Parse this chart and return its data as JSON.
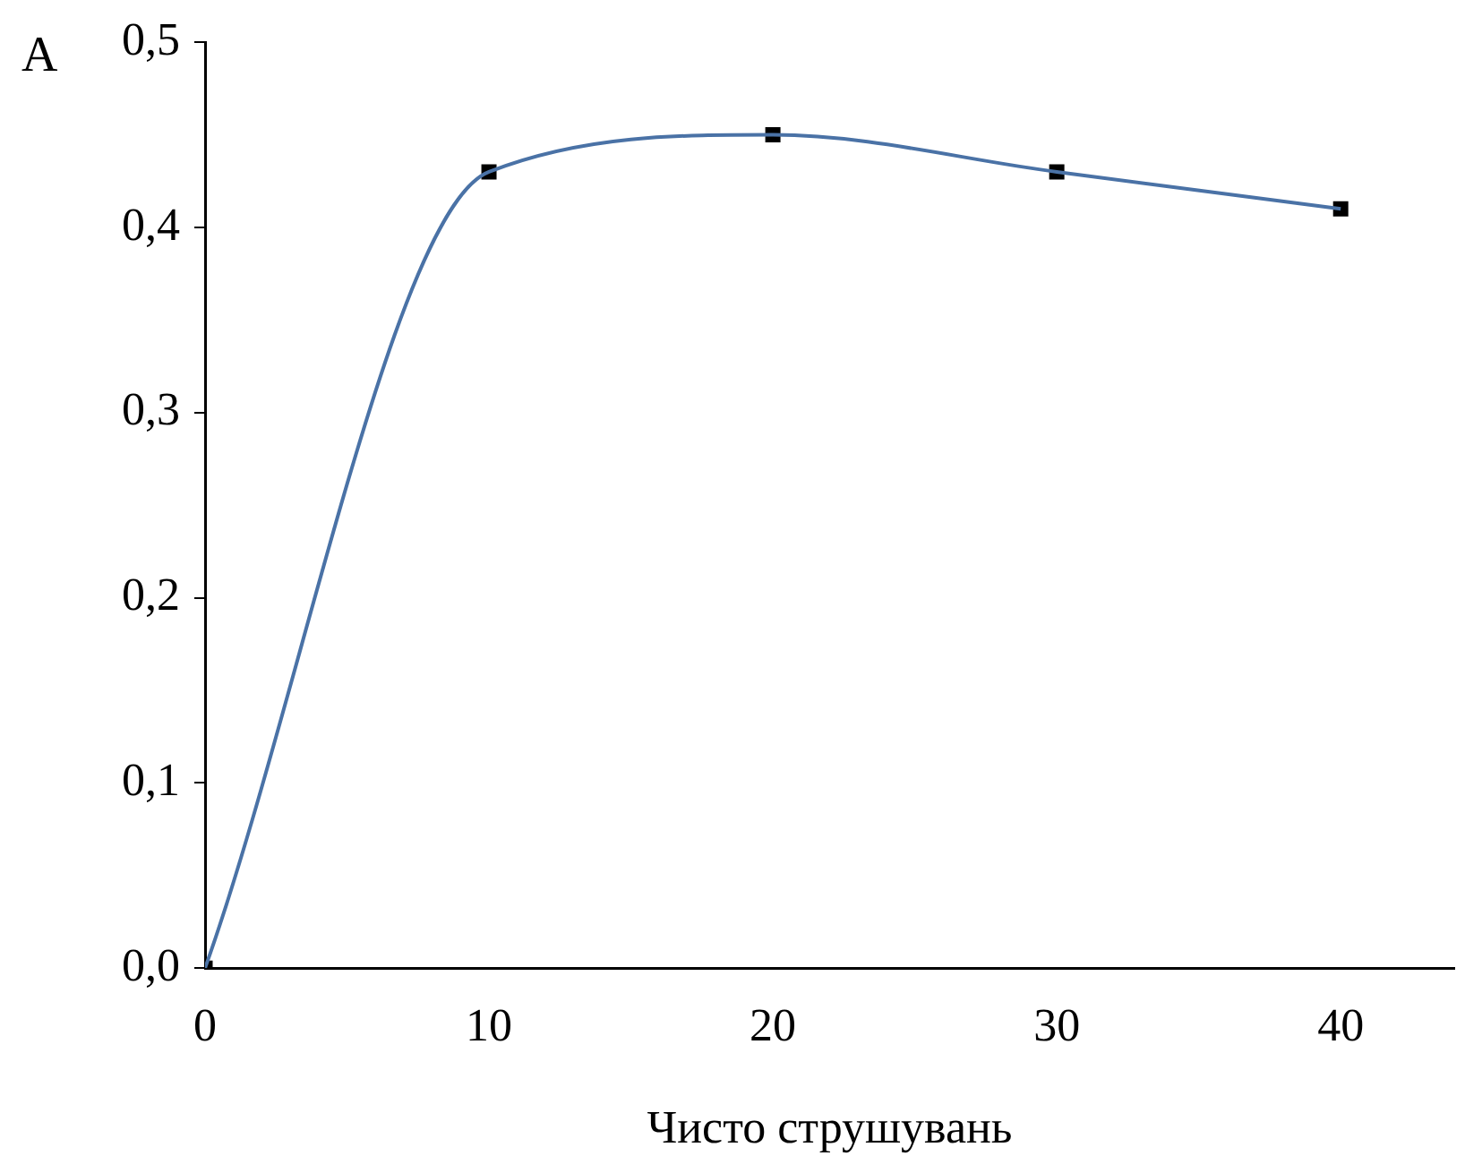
{
  "chart_data": {
    "type": "line",
    "xlabel": "Чисто струшувань",
    "annotations": [
      "A"
    ],
    "x": [
      0,
      10,
      20,
      30,
      40
    ],
    "series": [
      {
        "type": "line",
        "color": "#4a72a6",
        "marker": "none",
        "values": [
          0,
          0.43,
          0.45,
          0.43,
          0.41
        ]
      },
      {
        "type": "scatter",
        "color": "#000000",
        "marker": "square",
        "values": [
          0,
          0.43,
          0.45,
          0.43,
          0.41
        ]
      }
    ],
    "xlim": [
      0,
      44
    ],
    "xticks": [
      0,
      10,
      20,
      30,
      40
    ],
    "ylim": [
      0,
      0.5
    ],
    "yticks": [
      {
        "value": 0,
        "label": "0,0"
      },
      {
        "value": 0.1,
        "label": "0,1"
      },
      {
        "value": 0.2,
        "label": "0,2"
      },
      {
        "value": 0.3,
        "label": "0,3"
      },
      {
        "value": 0.4,
        "label": "0,4"
      },
      {
        "value": 0.5,
        "label": "0,5"
      }
    ],
    "grid": false,
    "legend": false
  }
}
